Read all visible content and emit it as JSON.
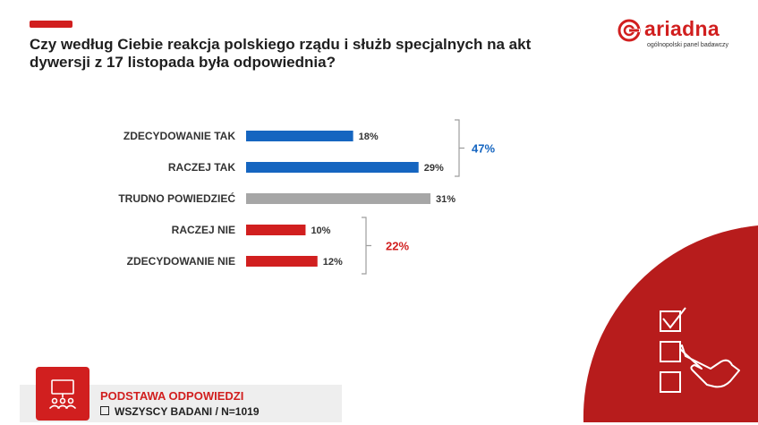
{
  "title": "Czy według Ciebie reakcja polskiego rządu i służb specjalnych na akt dywersji z 17 listopada była odpowiednia?",
  "logo": {
    "name": "ariadna",
    "tagline": "ogólnopolski panel badawczy"
  },
  "colors": {
    "brand": "#d11f1f",
    "positive": "#1565c0",
    "neutral": "#a6a6a6",
    "negative": "#d11f1f"
  },
  "chart_data": {
    "type": "bar",
    "orientation": "horizontal",
    "categories": [
      "ZDECYDOWANIE TAK",
      "RACZEJ TAK",
      "TRUDNO POWIEDZIEĆ",
      "RACZEJ NIE",
      "ZDECYDOWANIE NIE"
    ],
    "values": [
      18,
      29,
      31,
      10,
      12
    ],
    "value_labels": [
      "18%",
      "29%",
      "31%",
      "10%",
      "12%"
    ],
    "bar_colors": [
      "#1565c0",
      "#1565c0",
      "#a6a6a6",
      "#d11f1f",
      "#d11f1f"
    ],
    "unit": "%",
    "groups": [
      {
        "label": "47%",
        "members": [
          0,
          1
        ],
        "color": "#1565c0"
      },
      {
        "label": "22%",
        "members": [
          3,
          4
        ],
        "color": "#d11f1f"
      }
    ],
    "xlim": [
      0,
      31
    ],
    "grid": false,
    "legend": "none"
  },
  "base": {
    "title": "PODSTAWA ODPOWIEDZI",
    "sample": "WSZYSCY BADANI / N=1019"
  },
  "icons": [
    "presentation-icon",
    "checklist-icon",
    "pointing-hand-icon"
  ]
}
